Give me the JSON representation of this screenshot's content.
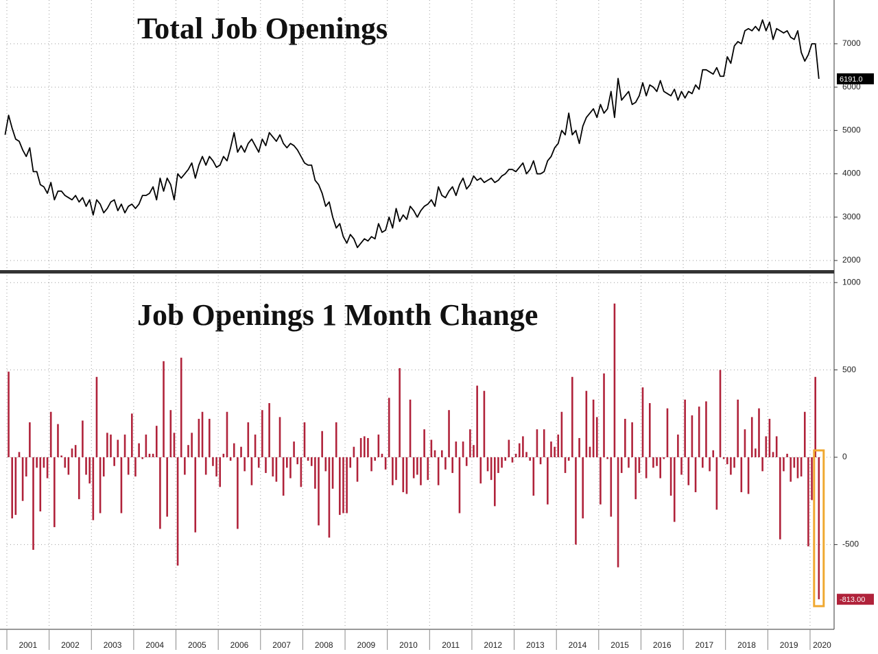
{
  "x_axis": {
    "labels": [
      "2001",
      "2002",
      "2003",
      "2004",
      "2005",
      "2006",
      "2007",
      "2008",
      "2009",
      "2010",
      "2011",
      "2012",
      "2013",
      "2014",
      "2015",
      "2016",
      "2017",
      "2018",
      "2019",
      "2020"
    ]
  },
  "chart_data": [
    {
      "type": "line",
      "title": "Total Job Openings",
      "color": "#000000",
      "grid": true,
      "ylim": [
        1810,
        8010
      ],
      "yticks": [
        2000,
        3000,
        4000,
        5000,
        6000,
        7000
      ],
      "values": [
        4900,
        5350,
        5050,
        4800,
        4750,
        4550,
        4400,
        4600,
        4050,
        4050,
        3750,
        3700,
        3550,
        3800,
        3400,
        3600,
        3600,
        3500,
        3450,
        3400,
        3500,
        3350,
        3450,
        3250,
        3400,
        3050,
        3400,
        3300,
        3100,
        3200,
        3350,
        3400,
        3150,
        3300,
        3100,
        3250,
        3300,
        3200,
        3300,
        3500,
        3500,
        3550,
        3700,
        3400,
        3900,
        3600,
        3900,
        3750,
        3400,
        4000,
        3900,
        4000,
        4100,
        4250,
        3900,
        4200,
        4400,
        4200,
        4400,
        4300,
        4150,
        4200,
        4400,
        4300,
        4600,
        4950,
        4500,
        4650,
        4500,
        4700,
        4800,
        4650,
        4500,
        4800,
        4650,
        4950,
        4850,
        4750,
        4900,
        4700,
        4600,
        4700,
        4650,
        4550,
        4400,
        4250,
        4200,
        4200,
        3850,
        3750,
        3550,
        3250,
        3350,
        3000,
        2750,
        2850,
        2550,
        2400,
        2600,
        2500,
        2300,
        2400,
        2500,
        2450,
        2550,
        2500,
        2850,
        2650,
        2700,
        3000,
        2750,
        3200,
        2900,
        3050,
        2950,
        3250,
        3150,
        3000,
        3150,
        3250,
        3300,
        3400,
        3250,
        3700,
        3500,
        3450,
        3600,
        3700,
        3500,
        3750,
        3900,
        3650,
        3750,
        3950,
        3850,
        3900,
        3800,
        3850,
        3900,
        3800,
        3850,
        3950,
        4000,
        4100,
        4100,
        4050,
        4150,
        4250,
        4000,
        4100,
        4300,
        4000,
        4000,
        4050,
        4300,
        4400,
        4600,
        4700,
        5000,
        4900,
        5400,
        4900,
        5000,
        4700,
        5100,
        5300,
        5400,
        5500,
        5300,
        5600,
        5400,
        5500,
        5900,
        5300,
        6200,
        5700,
        5800,
        5900,
        5600,
        5650,
        5800,
        6100,
        5800,
        6050,
        6000,
        5900,
        6150,
        5900,
        5850,
        5800,
        5950,
        5700,
        5900,
        5750,
        5900,
        5850,
        6050,
        5950,
        6400,
        6400,
        6350,
        6300,
        6450,
        6250,
        6250,
        6700,
        6550,
        6950,
        7050,
        7000,
        7300,
        7350,
        7300,
        7400,
        7300,
        7550,
        7300,
        7500,
        7100,
        7350,
        7300,
        7250,
        7300,
        7150,
        7100,
        7300,
        6800,
        6600,
        6750,
        7000,
        7000,
        6191
      ],
      "value_labels": [
        null,
        null,
        null,
        null,
        null,
        null,
        null,
        null,
        null,
        null,
        null,
        null,
        null,
        null,
        null,
        null,
        null,
        null,
        null,
        null,
        null,
        null,
        null,
        null,
        null,
        null,
        null,
        null,
        null,
        null,
        null,
        null,
        null,
        null,
        null,
        null,
        null,
        null,
        null,
        null,
        null,
        null,
        null,
        null,
        null,
        null,
        null,
        null,
        null,
        null,
        null,
        null,
        null,
        null,
        null,
        null,
        null,
        null,
        null,
        null,
        null,
        null,
        null,
        null,
        null,
        null,
        null,
        null,
        null,
        null,
        null,
        null,
        null,
        null,
        null,
        null,
        null,
        null,
        null,
        null,
        null,
        null,
        null,
        null,
        null,
        null,
        null,
        null,
        null,
        null,
        null,
        null,
        null,
        null,
        null,
        null,
        null,
        null,
        null,
        null,
        null,
        null,
        null,
        null,
        null,
        null,
        null,
        null,
        null,
        null,
        null,
        null,
        null,
        null,
        null,
        null,
        null,
        null,
        null,
        null,
        null,
        null,
        null,
        null,
        null,
        null,
        null,
        null,
        null,
        null,
        null,
        null,
        null,
        null,
        null,
        null,
        null,
        null,
        null,
        null,
        null,
        null,
        null,
        null,
        null,
        null,
        null,
        null,
        null,
        null,
        null,
        null,
        null,
        null,
        null,
        null,
        null,
        null,
        null,
        null,
        null,
        null,
        null,
        null,
        null,
        null,
        null,
        null,
        null,
        null,
        null,
        null,
        null,
        null,
        null,
        null,
        null,
        null,
        null,
        null,
        null,
        null,
        null,
        null,
        null,
        null,
        null,
        null,
        null,
        null,
        null,
        null,
        null,
        null,
        null,
        null,
        null,
        null,
        null,
        null,
        null,
        null,
        null,
        null,
        null,
        null,
        null,
        null,
        null,
        null,
        null,
        null,
        null,
        null,
        null,
        null,
        null,
        null,
        null,
        null,
        null,
        null,
        null,
        null,
        null,
        null,
        null,
        null,
        null,
        null,
        null,
        "6191.0"
      ]
    },
    {
      "type": "bar",
      "title": "Job Openings 1 Month Change",
      "color": "#b0223a",
      "highlight_color": "#f0a830",
      "grid": true,
      "ylim": [
        -985,
        1040
      ],
      "yticks": [
        -500,
        0,
        500,
        1000
      ],
      "values": [
        490,
        -350,
        -330,
        30,
        -250,
        -110,
        200,
        -530,
        -60,
        -310,
        -60,
        -120,
        260,
        -400,
        190,
        10,
        -60,
        -100,
        50,
        70,
        -240,
        210,
        -100,
        -150,
        -360,
        460,
        -320,
        -110,
        140,
        130,
        -50,
        100,
        -320,
        130,
        -100,
        250,
        -110,
        80,
        -10,
        130,
        20,
        20,
        180,
        -410,
        550,
        -340,
        270,
        140,
        -620,
        570,
        -100,
        70,
        140,
        -430,
        220,
        260,
        -100,
        220,
        -50,
        -110,
        -170,
        20,
        260,
        -20,
        80,
        -410,
        60,
        -80,
        200,
        -160,
        130,
        -60,
        270,
        -90,
        310,
        -110,
        -140,
        230,
        -220,
        -60,
        -120,
        90,
        -40,
        -170,
        200,
        -20,
        -50,
        -180,
        -390,
        150,
        -80,
        -460,
        -180,
        200,
        -330,
        -320,
        -320,
        -60,
        60,
        -140,
        110,
        120,
        110,
        -80,
        -20,
        130,
        20,
        -70,
        340,
        -160,
        -130,
        510,
        -200,
        -210,
        330,
        -120,
        -100,
        -160,
        160,
        -130,
        100,
        40,
        -160,
        40,
        -70,
        270,
        -90,
        90,
        -320,
        90,
        -50,
        160,
        70,
        410,
        -150,
        380,
        -80,
        -130,
        -280,
        -90,
        -60,
        -20,
        100,
        -30,
        20,
        80,
        120,
        30,
        -20,
        -220,
        160,
        -40,
        160,
        -270,
        90,
        60,
        130,
        260,
        -90,
        -20,
        460,
        -500,
        110,
        -350,
        380,
        60,
        330,
        230,
        -270,
        480,
        -10,
        -340,
        880,
        -630,
        -90,
        220,
        -60,
        200,
        -240,
        -90,
        400,
        -120,
        310,
        -60,
        -50,
        -120,
        -10,
        280,
        -220,
        -370,
        130,
        -100,
        330,
        -160,
        240,
        -200,
        290,
        -60,
        320,
        -80,
        40,
        -300,
        500,
        -10,
        -40,
        -100,
        -60,
        330,
        -200,
        160,
        -210,
        230,
        50,
        280,
        -80,
        120,
        220,
        30,
        120,
        -470,
        -80,
        20,
        -140,
        -60,
        -120,
        -110,
        260,
        -510,
        -245,
        460,
        -813
      ],
      "value_labels": [
        null,
        null,
        null,
        null,
        null,
        null,
        null,
        null,
        null,
        null,
        null,
        null,
        null,
        null,
        null,
        null,
        null,
        null,
        null,
        null,
        null,
        null,
        null,
        null,
        null,
        null,
        null,
        null,
        null,
        null,
        null,
        null,
        null,
        null,
        null,
        null,
        null,
        null,
        null,
        null,
        null,
        null,
        null,
        null,
        null,
        null,
        null,
        null,
        null,
        null,
        null,
        null,
        null,
        null,
        null,
        null,
        null,
        null,
        null,
        null,
        null,
        null,
        null,
        null,
        null,
        null,
        null,
        null,
        null,
        null,
        null,
        null,
        null,
        null,
        null,
        null,
        null,
        null,
        null,
        null,
        null,
        null,
        null,
        null,
        null,
        null,
        null,
        null,
        null,
        null,
        null,
        null,
        null,
        null,
        null,
        null,
        null,
        null,
        null,
        null,
        null,
        null,
        null,
        null,
        null,
        null,
        null,
        null,
        null,
        null,
        null,
        null,
        null,
        null,
        null,
        null,
        null,
        null,
        null,
        null,
        null,
        null,
        null,
        null,
        null,
        null,
        null,
        null,
        null,
        null,
        null,
        null,
        null,
        null,
        null,
        null,
        null,
        null,
        null,
        null,
        null,
        null,
        null,
        null,
        null,
        null,
        null,
        null,
        null,
        null,
        null,
        null,
        null,
        null,
        null,
        null,
        null,
        null,
        null,
        null,
        null,
        null,
        null,
        null,
        null,
        null,
        null,
        null,
        null,
        null,
        null,
        null,
        null,
        null,
        null,
        null,
        null,
        null,
        null,
        null,
        null,
        null,
        null,
        null,
        null,
        null,
        null,
        null,
        null,
        null,
        null,
        null,
        null,
        null,
        null,
        null,
        null,
        null,
        null,
        null,
        null,
        null,
        null,
        null,
        null,
        null,
        null,
        null,
        null,
        null,
        null,
        null,
        null,
        null,
        null,
        null,
        null,
        null,
        null,
        null,
        null,
        null,
        null,
        null,
        null,
        null,
        null,
        null,
        null,
        null,
        "-813.00"
      ]
    }
  ]
}
